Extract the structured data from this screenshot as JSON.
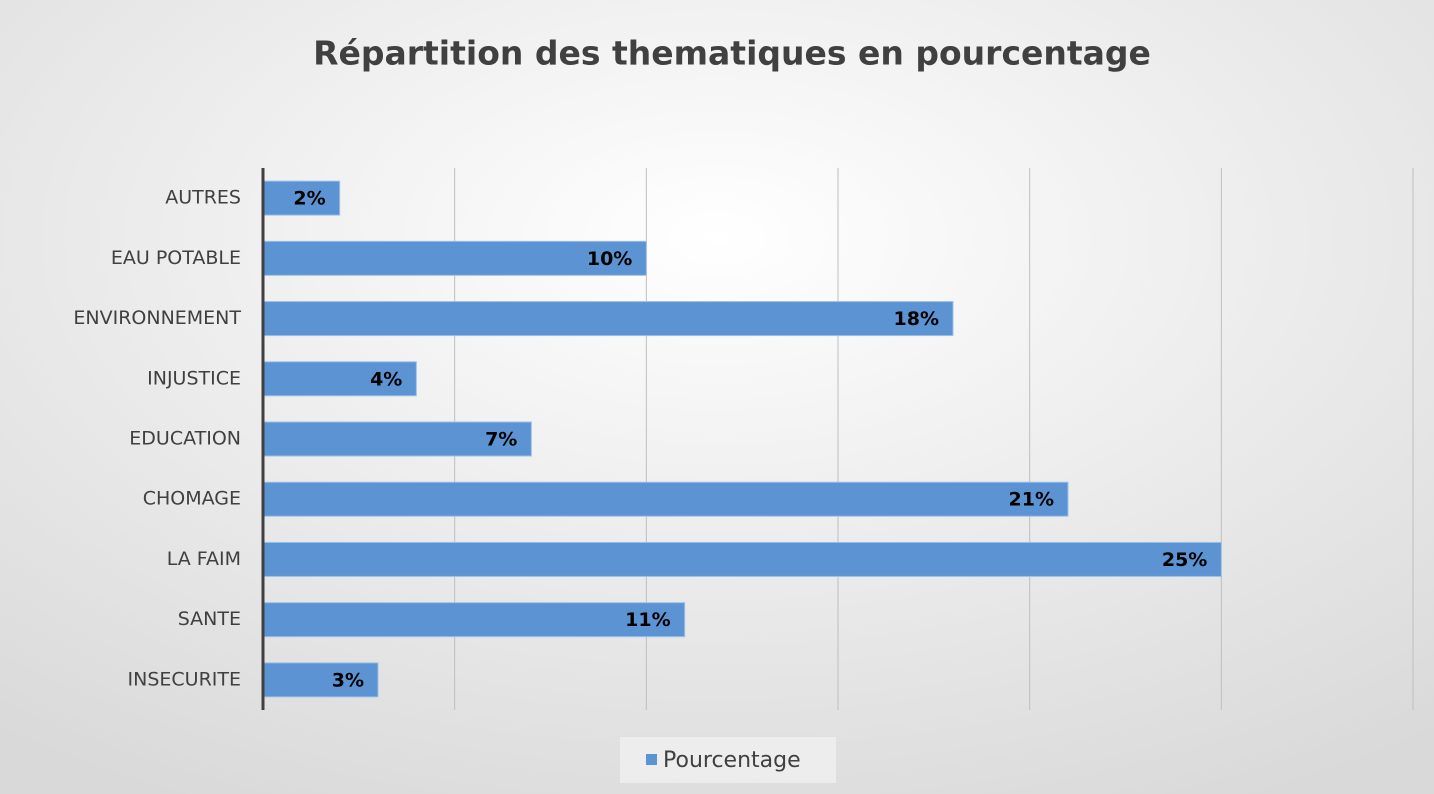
{
  "chart_data": {
    "type": "hbar",
    "title": "Répartition des thematiques en pourcentage",
    "categories": [
      "AUTRES",
      "EAU POTABLE",
      "ENVIRONNEMENT",
      "INJUSTICE",
      "EDUCATION",
      "CHOMAGE",
      "LA FAIM",
      "SANTE",
      "INSECURITE"
    ],
    "series": [
      {
        "name": "Pourcentage",
        "color": "#5b93d3",
        "values": [
          2,
          10,
          18,
          4,
          7,
          21,
          25,
          11,
          3
        ],
        "value_labels": [
          "2%",
          "10%",
          "18%",
          "4%",
          "7%",
          "21%",
          "25%",
          "11%",
          "3%"
        ]
      }
    ],
    "xlim": [
      0,
      30
    ],
    "xticks": [
      0,
      5,
      10,
      15,
      20,
      25,
      30
    ],
    "grid": true,
    "legend": "bottom"
  }
}
